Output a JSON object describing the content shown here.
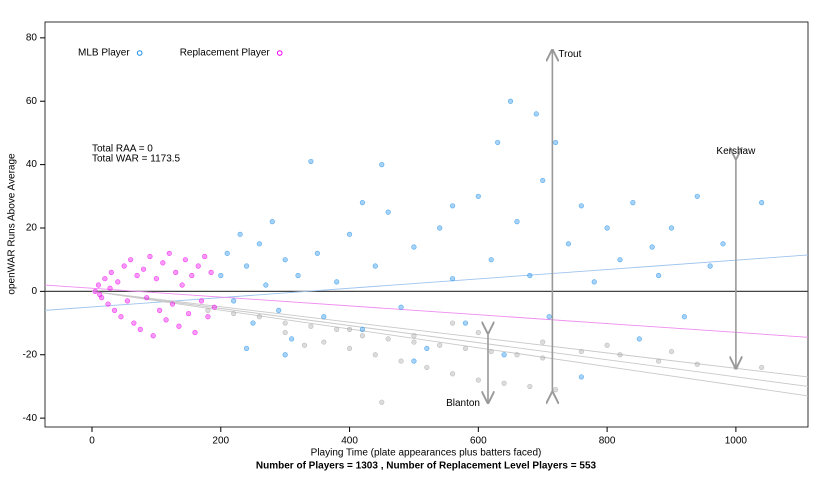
{
  "chart_data": {
    "type": "scatter",
    "xlabel": "Playing Time (plate appearances plus batters faced)",
    "ylabel": "openWAR Runs Above Average",
    "footer": "Number of Players = 1303 , Number of Replacement Level Players = 553",
    "notes": [
      "Total RAA = 0",
      "Total WAR = 1173.5"
    ],
    "xlim": [
      -73,
      1112
    ],
    "ylim": [
      -42.8,
      85
    ],
    "xticks": [
      0,
      200,
      400,
      600,
      800,
      1000
    ],
    "yticks": [
      -40,
      -20,
      0,
      20,
      40,
      60,
      80
    ],
    "series": [
      {
        "name": "MLB Player",
        "color": "#1e8fe8",
        "x": [
          200,
          210,
          220,
          230,
          240,
          250,
          260,
          270,
          280,
          290,
          300,
          310,
          320,
          340,
          350,
          360,
          380,
          400,
          420,
          440,
          460,
          480,
          500,
          520,
          540,
          560,
          580,
          600,
          620,
          640,
          650,
          660,
          680,
          690,
          700,
          710,
          720,
          740,
          760,
          780,
          800,
          820,
          840,
          850,
          870,
          880,
          900,
          920,
          940,
          960,
          980,
          1040,
          630,
          450,
          560,
          760,
          300,
          240,
          420,
          500
        ],
        "values": [
          5,
          12,
          -3,
          18,
          8,
          -10,
          15,
          2,
          22,
          -6,
          10,
          -15,
          5,
          41,
          12,
          -8,
          3,
          18,
          -12,
          8,
          25,
          -5,
          14,
          -18,
          20,
          4,
          -10,
          30,
          10,
          -20,
          60,
          22,
          5,
          56,
          35,
          -8,
          47,
          15,
          27,
          3,
          20,
          10,
          28,
          -15,
          14,
          5,
          20,
          -8,
          30,
          8,
          15,
          28,
          47,
          40,
          27,
          -27,
          -20,
          -18,
          28,
          -22
        ]
      },
      {
        "name": "Replacement Player",
        "color": "#ee00ee",
        "x": [
          5,
          10,
          15,
          20,
          25,
          30,
          35,
          40,
          45,
          50,
          55,
          60,
          65,
          70,
          75,
          80,
          85,
          90,
          95,
          100,
          105,
          110,
          115,
          120,
          125,
          130,
          135,
          140,
          145,
          150,
          155,
          160,
          165,
          170,
          175,
          180,
          185,
          190,
          12,
          28
        ],
        "values": [
          0,
          2,
          -2,
          4,
          -4,
          6,
          -6,
          3,
          -8,
          8,
          -3,
          10,
          -10,
          5,
          -12,
          7,
          -2,
          11,
          -14,
          4,
          -6,
          9,
          -9,
          12,
          -4,
          6,
          -11,
          2,
          10,
          -7,
          5,
          -13,
          8,
          -3,
          11,
          -8,
          6,
          -5,
          -1,
          1
        ]
      },
      {
        "color": "#a8a8a8",
        "x": [
          180,
          220,
          260,
          300,
          340,
          380,
          420,
          460,
          500,
          540,
          580,
          620,
          660,
          700,
          760,
          820,
          880,
          940,
          1000,
          1040,
          300,
          360,
          400,
          440,
          480,
          520,
          560,
          600,
          640,
          680,
          720,
          400,
          500,
          600,
          700,
          800,
          900,
          450,
          330,
          560
        ],
        "values": [
          -6,
          -7,
          -8,
          -10,
          -11,
          -12,
          -14,
          -15,
          -16,
          -17,
          -18,
          -19,
          -20,
          -21,
          -19,
          -20,
          -22,
          -23,
          -24,
          -24,
          -13,
          -16,
          -18,
          -20,
          -22,
          -24,
          -26,
          -28,
          -29,
          -30,
          -31,
          -12,
          -14,
          -13,
          -16,
          -17,
          -19,
          -35,
          -17,
          -10
        ]
      }
    ],
    "lines": [
      {
        "color": "#9ec4ee",
        "x": [
          -73,
          1112
        ],
        "values": [
          -6,
          11.5
        ]
      },
      {
        "color": "#f08cf0",
        "x": [
          -73,
          1112
        ],
        "values": [
          2,
          -14.5
        ]
      },
      {
        "color": "#c8c8c8",
        "x": [
          0,
          1112
        ],
        "values": [
          0,
          -27
        ]
      },
      {
        "color": "#c8c8c8",
        "x": [
          0,
          1112
        ],
        "values": [
          0,
          -30
        ]
      },
      {
        "color": "#c8c8c8",
        "x": [
          0,
          1112
        ],
        "values": [
          0,
          -33
        ]
      }
    ],
    "arrows": [
      {
        "label": "Trout",
        "x": 715,
        "y0": -32,
        "y1": 76
      },
      {
        "label": "Kershaw",
        "x": 1000,
        "y0": 42,
        "y1": -24
      },
      {
        "label": "Blanton",
        "x": 615,
        "y0": -13,
        "y1": -35
      }
    ]
  }
}
